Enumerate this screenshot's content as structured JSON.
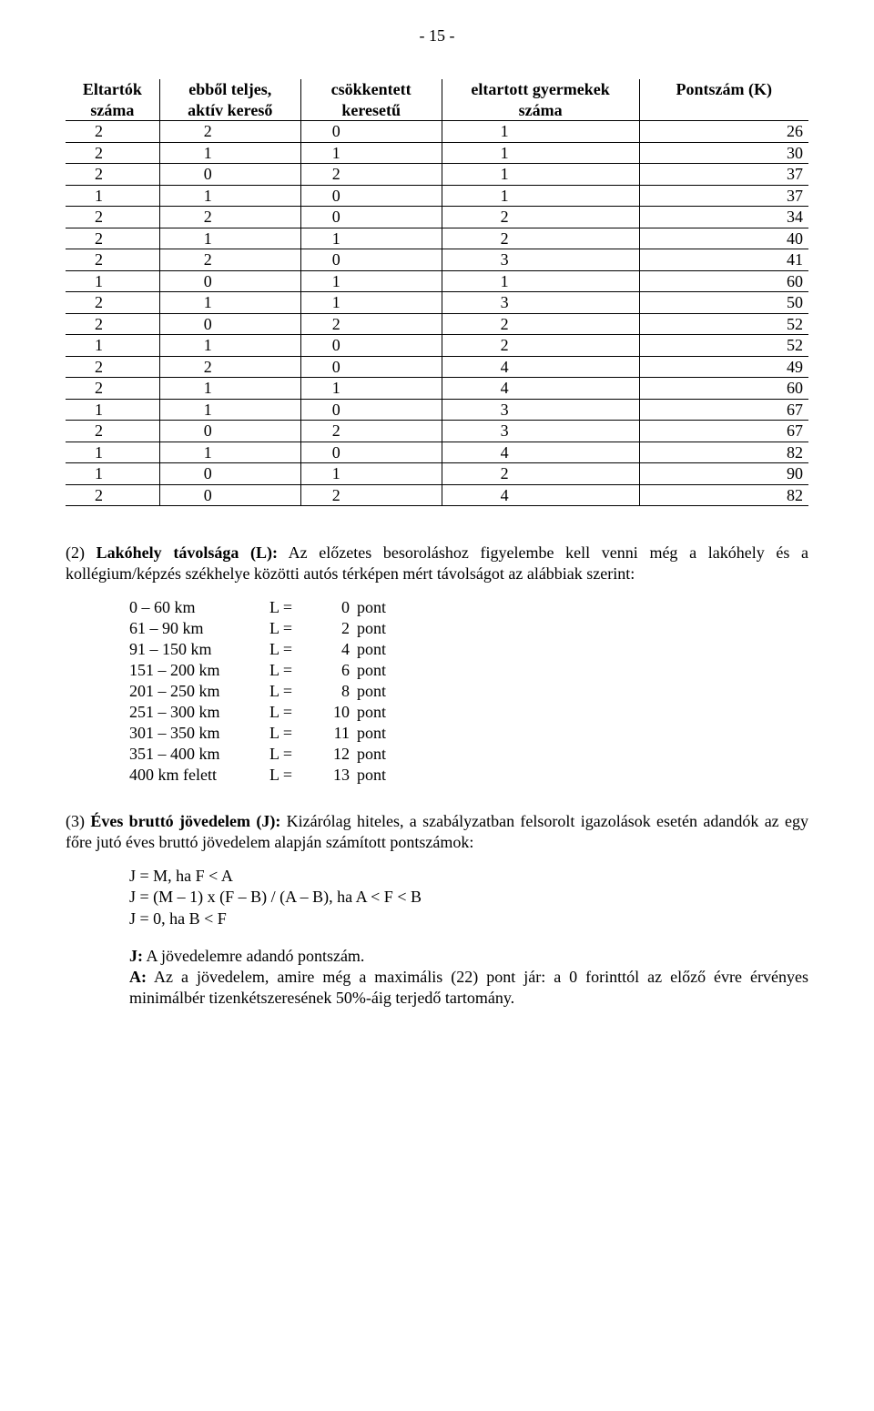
{
  "page_number": "- 15 -",
  "table": {
    "headers": [
      "Eltartók száma",
      "ebből teljes, aktív kereső",
      "csökkentett keresetű",
      "eltartott gyermekek száma",
      "Pontszám (K)"
    ],
    "rows": [
      [
        "2",
        "2",
        "0",
        "1",
        "26"
      ],
      [
        "2",
        "1",
        "1",
        "1",
        "30"
      ],
      [
        "2",
        "0",
        "2",
        "1",
        "37"
      ],
      [
        "1",
        "1",
        "0",
        "1",
        "37"
      ],
      [
        "2",
        "2",
        "0",
        "2",
        "34"
      ],
      [
        "2",
        "1",
        "1",
        "2",
        "40"
      ],
      [
        "2",
        "2",
        "0",
        "3",
        "41"
      ],
      [
        "1",
        "0",
        "1",
        "1",
        "60"
      ],
      [
        "2",
        "1",
        "1",
        "3",
        "50"
      ],
      [
        "2",
        "0",
        "2",
        "2",
        "52"
      ],
      [
        "1",
        "1",
        "0",
        "2",
        "52"
      ],
      [
        "2",
        "2",
        "0",
        "4",
        "49"
      ],
      [
        "2",
        "1",
        "1",
        "4",
        "60"
      ],
      [
        "1",
        "1",
        "0",
        "3",
        "67"
      ],
      [
        "2",
        "0",
        "2",
        "3",
        "67"
      ],
      [
        "1",
        "1",
        "0",
        "4",
        "82"
      ],
      [
        "1",
        "0",
        "1",
        "2",
        "90"
      ],
      [
        "2",
        "0",
        "2",
        "4",
        "82"
      ]
    ]
  },
  "para_L": {
    "prefix": "(2) ",
    "bold": "Lakóhely távolsága (L):",
    "rest": " Az előzetes besoroláshoz figyelembe kell venni még a lakóhely és a kollégium/képzés székhelye közötti autós térképen mért távolságot az alábbiak szerint:"
  },
  "dist_rows": [
    {
      "range": "0 – 60",
      "unit_km": "km",
      "eq": "L =",
      "val": "0",
      "unit": "pont"
    },
    {
      "range": "61 – 90",
      "unit_km": "km",
      "eq": "L =",
      "val": "2",
      "unit": "pont"
    },
    {
      "range": "91 – 150",
      "unit_km": "km",
      "eq": "L =",
      "val": "4",
      "unit": "pont"
    },
    {
      "range": "151 – 200",
      "unit_km": "km",
      "eq": "L =",
      "val": "6",
      "unit": "pont"
    },
    {
      "range": "201 – 250",
      "unit_km": "km",
      "eq": "L =",
      "val": "8",
      "unit": "pont"
    },
    {
      "range": "251 – 300",
      "unit_km": "km",
      "eq": "L =",
      "val": "10",
      "unit": "pont"
    },
    {
      "range": "301 – 350",
      "unit_km": "km",
      "eq": "L =",
      "val": "11",
      "unit": "pont"
    },
    {
      "range": "351 – 400",
      "unit_km": "km",
      "eq": "L =",
      "val": "12",
      "unit": "pont"
    },
    {
      "range": "400 km felett",
      "unit_km": "",
      "eq": "L =",
      "val": "13",
      "unit": "pont"
    }
  ],
  "para_J": {
    "prefix": "(3) ",
    "bold": "Éves bruttó jövedelem (J):",
    "rest": " Kizárólag hiteles, a szabályzatban felsorolt igazolások esetén adandók az egy főre jutó éves bruttó jövedelem alapján számított pontszámok:"
  },
  "formulas": [
    "J = M, ha F < A",
    "J = (M – 1) x (F – B) / (A – B), ha A < F < B",
    "J = 0, ha B < F"
  ],
  "explain_J": {
    "bold": "J:",
    "rest": " A jövedelemre adandó pontszám."
  },
  "explain_A": {
    "bold": "A:",
    "rest": " Az a jövedelem, amire még a maximális (22) pont jár: a 0 forinttól az előző évre érvényes minimálbér tizenkétszeresének 50%-áig terjedő tartomány."
  }
}
